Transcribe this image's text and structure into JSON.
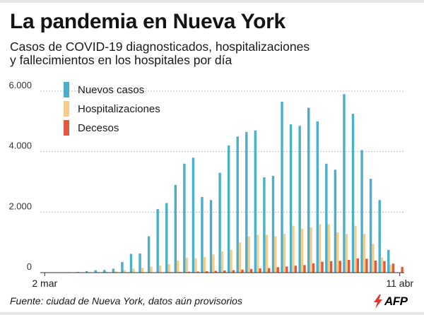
{
  "title": "La pandemia en Nueva York",
  "subtitle_line1": "Casos de COVID-19 diagnosticados, hospitalizaciones",
  "subtitle_line2": "y fallecimientos en los hospitales por día",
  "source": "Fuente: ciudad de Nueva York, datos aún provisorios",
  "logo_text": "AFP",
  "colors": {
    "cases": "#4aaecd",
    "hospitalizations": "#f5cd86",
    "deaths": "#e05a3f",
    "grid": "#bfbfbf",
    "logo_bolt": "#e3342f"
  },
  "chart_data": {
    "type": "bar",
    "title": "La pandemia en Nueva York",
    "xlabel": "",
    "ylabel": "",
    "ylim": [
      0,
      6000
    ],
    "y_ticks": [
      {
        "value": 0,
        "label": "0"
      },
      {
        "value": 2000,
        "label": "2.000"
      },
      {
        "value": 4000,
        "label": "4.000"
      },
      {
        "value": 6000,
        "label": "6.000"
      }
    ],
    "x_labels": [
      {
        "index": 0,
        "label": "2 mar"
      },
      {
        "index": 40,
        "label": "11 abr"
      }
    ],
    "legend": [
      "Nuevos casos",
      "Hospitalizaciones",
      "Decesos"
    ],
    "categories": [
      "2 mar",
      "3 mar",
      "4 mar",
      "5 mar",
      "6 mar",
      "7 mar",
      "8 mar",
      "9 mar",
      "10 mar",
      "11 mar",
      "12 mar",
      "13 mar",
      "14 mar",
      "15 mar",
      "16 mar",
      "17 mar",
      "18 mar",
      "19 mar",
      "20 mar",
      "21 mar",
      "22 mar",
      "23 mar",
      "24 mar",
      "25 mar",
      "26 mar",
      "27 mar",
      "28 mar",
      "29 mar",
      "30 mar",
      "31 mar",
      "1 abr",
      "2 abr",
      "3 abr",
      "4 abr",
      "5 abr",
      "6 abr",
      "7 abr",
      "8 abr",
      "9 abr",
      "10 abr",
      "11 abr"
    ],
    "series": [
      {
        "name": "Nuevos casos",
        "values": [
          2,
          5,
          10,
          15,
          25,
          50,
          80,
          90,
          130,
          350,
          620,
          630,
          1200,
          2100,
          2300,
          2900,
          3600,
          3800,
          2500,
          2400,
          3300,
          4200,
          4500,
          4650,
          4700,
          3150,
          3200,
          5650,
          4900,
          4850,
          5450,
          5000,
          3600,
          3400,
          5900,
          5250,
          4050,
          3100,
          2400,
          750,
          0
        ]
      },
      {
        "name": "Hospitalizaciones",
        "values": [
          0,
          2,
          4,
          6,
          10,
          12,
          20,
          30,
          40,
          80,
          130,
          160,
          200,
          240,
          280,
          400,
          500,
          480,
          520,
          600,
          700,
          760,
          1000,
          1200,
          1250,
          1250,
          1200,
          1280,
          1550,
          1450,
          1500,
          1600,
          1600,
          1330,
          1280,
          1550,
          1280,
          950,
          500,
          260,
          0
        ]
      },
      {
        "name": "Decesos",
        "values": [
          0,
          0,
          0,
          0,
          0,
          0,
          0,
          2,
          3,
          5,
          5,
          8,
          10,
          10,
          15,
          20,
          30,
          35,
          45,
          60,
          70,
          80,
          100,
          120,
          140,
          150,
          180,
          200,
          230,
          250,
          310,
          360,
          380,
          390,
          420,
          470,
          460,
          400,
          380,
          300,
          190
        ]
      }
    ]
  }
}
